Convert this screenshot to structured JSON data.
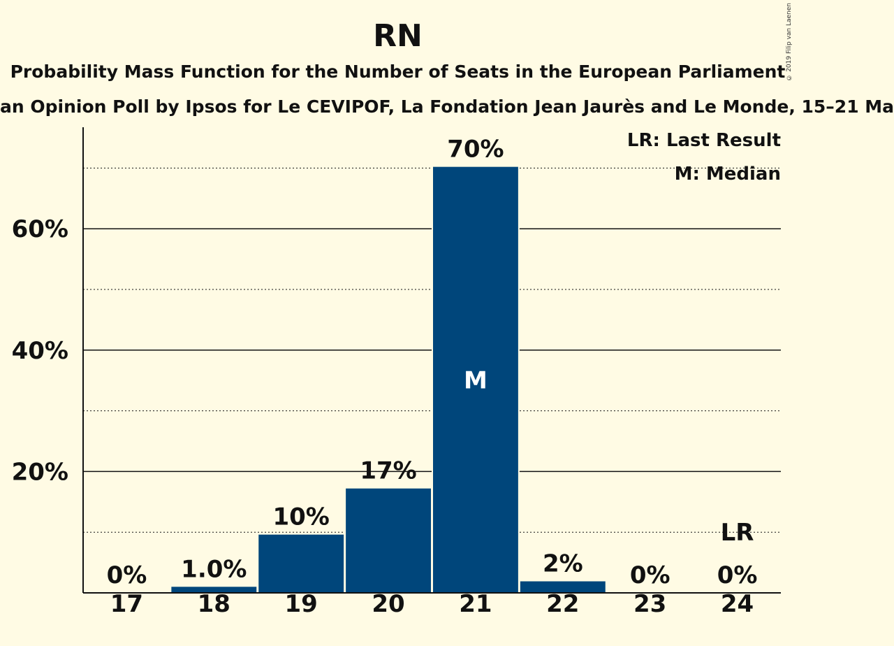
{
  "header": {
    "title": "RN",
    "subtitle": "Probability Mass Function for the Number of Seats in the European Parliament",
    "subtitle2": "an Opinion Poll by Ipsos for Le CEVIPOF, La Fondation Jean Jaurès and Le Monde, 15–21 Ma",
    "copyright": "© 2019 Filip van Laenen"
  },
  "legend": {
    "lr": "LR: Last Result",
    "median": "M: Median"
  },
  "chart_data": {
    "type": "bar",
    "categories": [
      "17",
      "18",
      "19",
      "20",
      "21",
      "22",
      "23",
      "24"
    ],
    "values": [
      0,
      1.0,
      9.6,
      17.2,
      70.2,
      1.9,
      0,
      0
    ],
    "labels": [
      "0%",
      "1.0%",
      "10%",
      "17%",
      "70%",
      "2%",
      "0%",
      "0%"
    ],
    "ylim": [
      0,
      76
    ],
    "yticks": [
      20,
      40,
      60
    ],
    "ytick_labels": [
      "20%",
      "40%",
      "60%"
    ],
    "minor_gridlines": [
      10,
      30,
      50,
      70
    ],
    "median_index": 4,
    "median_label": "M",
    "last_result_index": 7,
    "last_result_label": "LR",
    "bar_color": "#00467b",
    "legend_position": "top-right"
  }
}
